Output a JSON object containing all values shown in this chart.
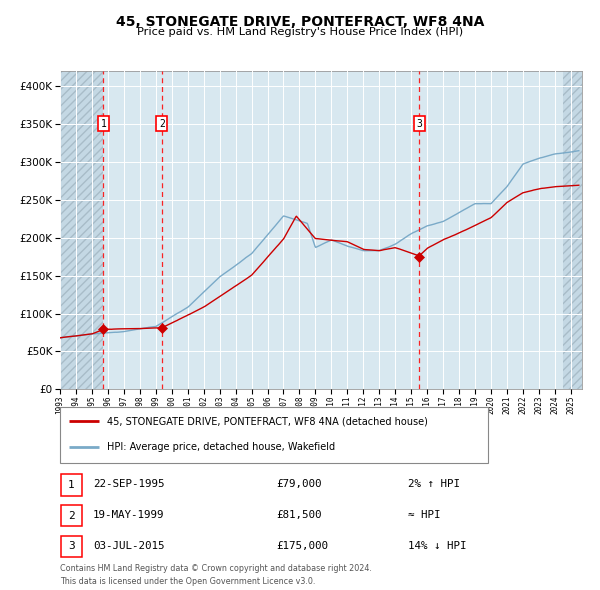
{
  "title": "45, STONEGATE DRIVE, PONTEFRACT, WF8 4NA",
  "subtitle": "Price paid vs. HM Land Registry's House Price Index (HPI)",
  "sale_label": "45, STONEGATE DRIVE, PONTEFRACT, WF8 4NA (detached house)",
  "hpi_label": "HPI: Average price, detached house, Wakefield",
  "sale_color": "#cc0000",
  "hpi_color": "#7aaac8",
  "bg_color": "#d8e8f0",
  "hatch_edgecolor": "#b0c8d8",
  "grid_color": "#ffffff",
  "marker_color": "#cc0000",
  "ylim": [
    0,
    420000
  ],
  "yticks": [
    0,
    50000,
    100000,
    150000,
    200000,
    250000,
    300000,
    350000,
    400000
  ],
  "xlim_start": 1993,
  "xlim_end": 2025.7,
  "hatch_left_end": 1995.72,
  "hatch_right_start": 2024.5,
  "transactions": [
    {
      "num": 1,
      "date": "22-SEP-1995",
      "price": 79000,
      "year": 1995.72,
      "note": "2% ↑ HPI"
    },
    {
      "num": 2,
      "date": "19-MAY-1999",
      "price": 81500,
      "year": 1999.38,
      "note": "≈ HPI"
    },
    {
      "num": 3,
      "date": "03-JUL-2015",
      "price": 175000,
      "year": 2015.5,
      "note": "14% ↓ HPI"
    }
  ],
  "hpi_key_years": [
    1993,
    1995,
    1997,
    1999,
    2001,
    2003,
    2005,
    2007,
    2008.5,
    2009,
    2010,
    2011,
    2012,
    2013,
    2014,
    2015,
    2016,
    2017,
    2018,
    2019,
    2020,
    2021,
    2022,
    2023,
    2024,
    2025.5
  ],
  "hpi_key_vals": [
    68000,
    73000,
    76000,
    82000,
    108000,
    148000,
    178000,
    228000,
    218000,
    186000,
    196000,
    188000,
    182000,
    182000,
    190000,
    204000,
    214000,
    220000,
    232000,
    243000,
    243000,
    265000,
    295000,
    303000,
    308000,
    312000
  ],
  "sale_key_years": [
    1993,
    1995.0,
    1995.72,
    1999.38,
    2002,
    2005,
    2007,
    2007.8,
    2009,
    2010,
    2011,
    2012,
    2013,
    2014,
    2015.5,
    2016,
    2017,
    2018,
    2019,
    2020,
    2021,
    2022,
    2023,
    2024,
    2025.5
  ],
  "sale_key_vals": [
    68000,
    73000,
    79000,
    81500,
    108000,
    150000,
    198000,
    228000,
    198000,
    196000,
    194000,
    184000,
    182000,
    186000,
    175000,
    185000,
    196000,
    205000,
    215000,
    225000,
    245000,
    258000,
    263000,
    266000,
    268000
  ],
  "footer_line1": "Contains HM Land Registry data © Crown copyright and database right 2024.",
  "footer_line2": "This data is licensed under the Open Government Licence v3.0."
}
